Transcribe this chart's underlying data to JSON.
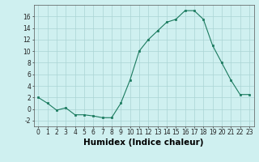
{
  "x": [
    0,
    1,
    2,
    3,
    4,
    5,
    6,
    7,
    8,
    9,
    10,
    11,
    12,
    13,
    14,
    15,
    16,
    17,
    18,
    19,
    20,
    21,
    22,
    23
  ],
  "y": [
    2,
    1,
    -0.2,
    0.2,
    -1,
    -1,
    -1.2,
    -1.5,
    -1.5,
    1,
    5,
    10,
    12,
    13.5,
    15,
    15.5,
    17,
    17,
    15.5,
    11,
    8,
    5,
    2.5,
    2.5
  ],
  "line_color": "#1a7a5e",
  "marker_color": "#1a7a5e",
  "bg_color": "#cff0f0",
  "grid_color": "#aad4d4",
  "xlabel": "Humidex (Indice chaleur)",
  "xlim": [
    -0.5,
    23.5
  ],
  "ylim": [
    -3,
    18
  ],
  "yticks": [
    -2,
    0,
    2,
    4,
    6,
    8,
    10,
    12,
    14,
    16
  ],
  "xticks": [
    0,
    1,
    2,
    3,
    4,
    5,
    6,
    7,
    8,
    9,
    10,
    11,
    12,
    13,
    14,
    15,
    16,
    17,
    18,
    19,
    20,
    21,
    22,
    23
  ],
  "tick_fontsize": 5.5,
  "xlabel_fontsize": 7.5
}
